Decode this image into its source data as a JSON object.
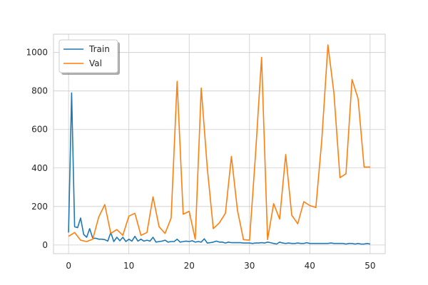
{
  "chart_data": {
    "type": "line",
    "title": "",
    "xlabel": "",
    "ylabel": "",
    "xlim": [
      -2.5,
      52.5
    ],
    "ylim": [
      -45,
      1095
    ],
    "x_ticks": [
      0,
      10,
      20,
      30,
      40,
      50
    ],
    "y_ticks": [
      0,
      200,
      400,
      600,
      800,
      1000
    ],
    "grid": true,
    "legend_position": "top-left",
    "colors": {
      "Train": "#1f77b4",
      "Val": "#ff7f0e"
    },
    "series": [
      {
        "name": "Train",
        "x": [
          0,
          0.5,
          1,
          1.5,
          2,
          2.5,
          3,
          3.5,
          4,
          4.5,
          5,
          5.5,
          6,
          6.5,
          7,
          7.5,
          8,
          8.5,
          9,
          9.5,
          10,
          10.5,
          11,
          11.5,
          12,
          12.5,
          13,
          13.5,
          14,
          14.5,
          15,
          15.5,
          16,
          16.5,
          17,
          17.5,
          18,
          18.5,
          19,
          19.5,
          20,
          20.5,
          21,
          21.5,
          22,
          22.5,
          23,
          23.5,
          24,
          24.5,
          25,
          25.5,
          26,
          26.5,
          27,
          27.5,
          28,
          28.5,
          29,
          29.5,
          30,
          30.5,
          31,
          31.5,
          32,
          32.5,
          33,
          33.5,
          34,
          34.5,
          35,
          35.5,
          36,
          36.5,
          37,
          37.5,
          38,
          38.5,
          39,
          39.5,
          40,
          40.5,
          41,
          41.5,
          42,
          42.5,
          43,
          43.5,
          44,
          44.5,
          45,
          45.5,
          46,
          46.5,
          47,
          47.5,
          48,
          48.5,
          49,
          49.5,
          50
        ],
        "values": [
          65,
          790,
          95,
          90,
          140,
          55,
          40,
          85,
          35,
          35,
          30,
          30,
          28,
          20,
          65,
          18,
          40,
          22,
          40,
          18,
          30,
          20,
          45,
          20,
          30,
          20,
          25,
          20,
          40,
          15,
          18,
          20,
          25,
          15,
          18,
          18,
          30,
          15,
          18,
          20,
          18,
          22,
          15,
          18,
          15,
          32,
          10,
          12,
          15,
          20,
          15,
          15,
          10,
          15,
          12,
          12,
          12,
          12,
          10,
          10,
          10,
          8,
          10,
          10,
          12,
          10,
          15,
          12,
          8,
          5,
          15,
          10,
          8,
          10,
          8,
          8,
          10,
          8,
          8,
          12,
          8,
          8,
          8,
          8,
          8,
          8,
          8,
          10,
          8,
          8,
          8,
          8,
          5,
          8,
          8,
          5,
          8,
          5,
          5,
          8,
          5
        ]
      },
      {
        "name": "Val",
        "x": [
          0,
          1,
          2,
          3,
          4,
          5,
          6,
          7,
          8,
          9,
          10,
          11,
          12,
          13,
          14,
          15,
          16,
          17,
          18,
          19,
          20,
          21,
          22,
          23,
          24,
          25,
          26,
          27,
          28,
          29,
          30,
          31,
          32,
          33,
          34,
          35,
          36,
          37,
          38,
          39,
          40,
          41,
          42,
          43,
          44,
          45,
          46,
          47,
          48,
          49,
          50
        ],
        "values": [
          45,
          65,
          25,
          18,
          30,
          145,
          210,
          60,
          80,
          50,
          150,
          165,
          50,
          65,
          250,
          95,
          60,
          140,
          850,
          160,
          175,
          30,
          815,
          400,
          85,
          115,
          165,
          460,
          180,
          28,
          25,
          470,
          975,
          28,
          215,
          135,
          470,
          155,
          110,
          225,
          205,
          195,
          550,
          1040,
          790,
          350,
          370,
          860,
          760,
          405,
          405
        ]
      }
    ]
  }
}
